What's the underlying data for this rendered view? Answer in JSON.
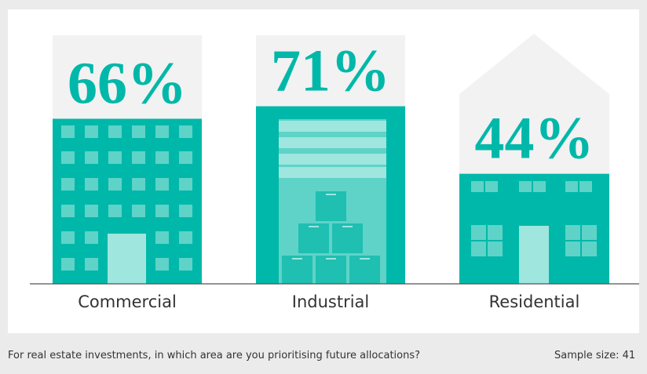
{
  "chart_data": {
    "type": "bar",
    "categories": [
      "Commercial",
      "Industrial",
      "Residential"
    ],
    "values": [
      66,
      71,
      44
    ],
    "value_labels": [
      "66%",
      "71%",
      "44%"
    ],
    "color": "#00b8a9",
    "ylim": [
      0,
      100
    ],
    "caption": "For real estate investments, in which area are you prioritising future allocations?",
    "sample_size": "Sample size: 41"
  }
}
